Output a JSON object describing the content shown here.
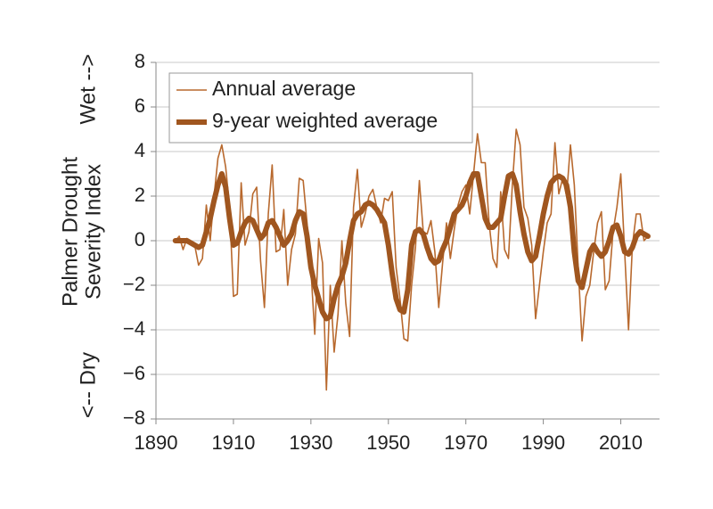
{
  "chart_data": {
    "type": "line",
    "y_label_lines": [
      "Palmer Drought",
      "Severity Index"
    ],
    "wet_label": "Wet -->",
    "dry_label": "<-- Dry",
    "x": [
      1895,
      1896,
      1897,
      1898,
      1899,
      1900,
      1901,
      1902,
      1903,
      1904,
      1905,
      1906,
      1907,
      1908,
      1909,
      1910,
      1911,
      1912,
      1913,
      1914,
      1915,
      1916,
      1917,
      1918,
      1919,
      1920,
      1921,
      1922,
      1923,
      1924,
      1925,
      1926,
      1927,
      1928,
      1929,
      1930,
      1931,
      1932,
      1933,
      1934,
      1935,
      1936,
      1937,
      1938,
      1939,
      1940,
      1941,
      1942,
      1943,
      1944,
      1945,
      1946,
      1947,
      1948,
      1949,
      1950,
      1951,
      1952,
      1953,
      1954,
      1955,
      1956,
      1957,
      1958,
      1959,
      1960,
      1961,
      1962,
      1963,
      1964,
      1965,
      1966,
      1967,
      1968,
      1969,
      1970,
      1971,
      1972,
      1973,
      1974,
      1975,
      1976,
      1977,
      1978,
      1979,
      1980,
      1981,
      1982,
      1983,
      1984,
      1985,
      1986,
      1987,
      1988,
      1989,
      1990,
      1991,
      1992,
      1993,
      1994,
      1995,
      1996,
      1997,
      1998,
      1999,
      2000,
      2001,
      2002,
      2003,
      2004,
      2005,
      2006,
      2007,
      2008,
      2009,
      2010,
      2011,
      2012,
      2013,
      2014,
      2015,
      2016,
      2017
    ],
    "series": [
      {
        "name": "Annual average",
        "color": "#b8692e",
        "width": 1.6,
        "values": [
          0.0,
          0.2,
          -0.4,
          0.1,
          -0.1,
          -0.2,
          -1.1,
          -0.8,
          1.6,
          0.0,
          2.0,
          3.7,
          4.3,
          3.3,
          1.5,
          -2.5,
          -2.4,
          2.6,
          -0.2,
          0.4,
          2.1,
          2.4,
          -0.9,
          -3.0,
          1.2,
          3.4,
          -0.5,
          -0.4,
          1.4,
          -2.0,
          -0.4,
          0.3,
          2.8,
          2.7,
          0.8,
          -1.3,
          -4.2,
          0.1,
          -1.0,
          -6.7,
          -2.0,
          -5.0,
          -3.3,
          0.0,
          -2.8,
          -4.3,
          1.5,
          3.2,
          0.6,
          1.2,
          2.0,
          2.3,
          1.5,
          0.8,
          1.9,
          1.8,
          2.2,
          -1.2,
          -2.6,
          -4.4,
          -4.5,
          -2.0,
          -0.3,
          2.7,
          0.4,
          0.3,
          0.9,
          -0.5,
          -3.0,
          -1.0,
          0.8,
          -0.8,
          0.5,
          1.6,
          2.2,
          2.5,
          1.2,
          3.0,
          4.8,
          3.5,
          3.5,
          0.8,
          -0.8,
          -1.2,
          2.2,
          -0.4,
          -0.8,
          2.5,
          5.0,
          4.3,
          1.5,
          1.0,
          -0.2,
          -3.5,
          -2.0,
          -0.5,
          0.8,
          1.2,
          4.4,
          2.1,
          2.8,
          2.0,
          4.3,
          2.5,
          -1.2,
          -4.5,
          -2.5,
          -2.0,
          -0.5,
          0.8,
          1.3,
          -2.2,
          -1.8,
          0.4,
          1.5,
          3.0,
          -0.5,
          -4.0,
          -0.2,
          1.2,
          1.2,
          0.0,
          0.2
        ]
      },
      {
        "name": "9-year weighted average",
        "color": "#a0561f",
        "width": 6,
        "values": [
          0.0,
          0.0,
          0.0,
          0.0,
          -0.1,
          -0.2,
          -0.3,
          -0.2,
          0.4,
          1.0,
          1.8,
          2.5,
          3.0,
          2.4,
          1.0,
          -0.2,
          -0.1,
          0.4,
          0.8,
          1.0,
          0.9,
          0.5,
          0.1,
          0.3,
          0.8,
          0.9,
          0.6,
          0.2,
          -0.2,
          0.0,
          0.3,
          0.9,
          1.3,
          1.2,
          0.2,
          -1.2,
          -2.0,
          -2.6,
          -3.2,
          -3.5,
          -3.4,
          -2.6,
          -2.0,
          -1.6,
          -1.0,
          0.0,
          0.9,
          1.2,
          1.3,
          1.6,
          1.7,
          1.6,
          1.4,
          1.1,
          0.8,
          -0.2,
          -1.5,
          -2.6,
          -3.1,
          -3.2,
          -2.2,
          -0.2,
          0.4,
          0.5,
          0.3,
          -0.3,
          -0.8,
          -1.0,
          -0.9,
          -0.4,
          0.0,
          0.6,
          1.2,
          1.4,
          1.6,
          2.0,
          2.6,
          3.0,
          3.0,
          2.0,
          1.0,
          0.6,
          0.6,
          0.8,
          1.0,
          2.0,
          2.9,
          3.0,
          2.5,
          1.3,
          0.3,
          -0.5,
          -0.9,
          -0.7,
          0.2,
          1.2,
          2.0,
          2.6,
          2.8,
          2.9,
          2.8,
          2.5,
          1.5,
          -0.5,
          -1.8,
          -2.1,
          -1.3,
          -0.5,
          -0.2,
          -0.5,
          -0.7,
          -0.5,
          0.0,
          0.6,
          0.7,
          0.2,
          -0.5,
          -0.6,
          -0.3,
          0.2,
          0.4,
          0.3,
          0.2
        ]
      }
    ],
    "xlim": [
      1890,
      2020
    ],
    "xticks": [
      1890,
      1910,
      1930,
      1950,
      1970,
      1990,
      2010
    ],
    "ylim": [
      -8,
      8
    ],
    "yticks": [
      {
        "value": -8,
        "label": "−8"
      },
      {
        "value": -6,
        "label": "−6"
      },
      {
        "value": -4,
        "label": "−4"
      },
      {
        "value": -2,
        "label": "−2"
      },
      0,
      2,
      4,
      6,
      8
    ],
    "grid": true,
    "legend": "upper left"
  }
}
